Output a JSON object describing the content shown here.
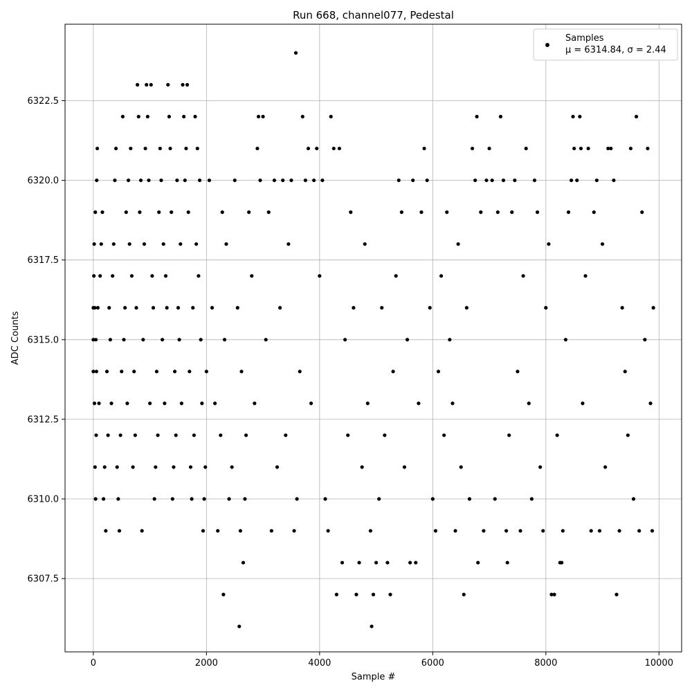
{
  "chart_data": {
    "type": "scatter",
    "title": "Run 668, channel077, Pedestal",
    "xlabel": "Sample #",
    "ylabel": "ADC Counts",
    "xlim": [
      -500,
      10400
    ],
    "ylim": [
      6305.2,
      6324.9
    ],
    "xticks": [
      0,
      2000,
      4000,
      6000,
      8000,
      10000
    ],
    "xtick_labels": [
      "0",
      "2000",
      "4000",
      "6000",
      "8000",
      "10000"
    ],
    "yticks": [
      6307.5,
      6310.0,
      6312.5,
      6315.0,
      6317.5,
      6320.0,
      6322.5
    ],
    "ytick_labels": [
      "6307.5",
      "6310.0",
      "6312.5",
      "6315.0",
      "6317.5",
      "6320.0",
      "6322.5"
    ],
    "grid": true,
    "legend": {
      "position": "top-right",
      "label_line1": "Samples",
      "label_line2": "μ = 6314.84, σ = 2.44"
    },
    "series": [
      {
        "name": "Samples",
        "color": "#000000",
        "points": [
          [
            0,
            6316
          ],
          [
            0,
            6314
          ],
          [
            0,
            6315
          ],
          [
            10,
            6317
          ],
          [
            15,
            6318
          ],
          [
            20,
            6313
          ],
          [
            25,
            6316
          ],
          [
            30,
            6311
          ],
          [
            35,
            6319
          ],
          [
            40,
            6310
          ],
          [
            45,
            6315
          ],
          [
            50,
            6312
          ],
          [
            55,
            6314
          ],
          [
            60,
            6320
          ],
          [
            70,
            6321
          ],
          [
            80,
            6316
          ],
          [
            100,
            6313
          ],
          [
            120,
            6317
          ],
          [
            140,
            6318
          ],
          [
            160,
            6319
          ],
          [
            180,
            6310
          ],
          [
            200,
            6311
          ],
          [
            220,
            6309
          ],
          [
            240,
            6314
          ],
          [
            260,
            6312
          ],
          [
            280,
            6316
          ],
          [
            300,
            6315
          ],
          [
            320,
            6313
          ],
          [
            340,
            6317
          ],
          [
            360,
            6318
          ],
          [
            380,
            6320
          ],
          [
            400,
            6321
          ],
          [
            420,
            6311
          ],
          [
            440,
            6310
          ],
          [
            460,
            6309
          ],
          [
            480,
            6312
          ],
          [
            500,
            6314
          ],
          [
            520,
            6322
          ],
          [
            540,
            6315
          ],
          [
            560,
            6316
          ],
          [
            580,
            6319
          ],
          [
            600,
            6313
          ],
          [
            620,
            6320
          ],
          [
            640,
            6318
          ],
          [
            660,
            6321
          ],
          [
            680,
            6317
          ],
          [
            700,
            6311
          ],
          [
            720,
            6314
          ],
          [
            740,
            6312
          ],
          [
            760,
            6316
          ],
          [
            780,
            6323
          ],
          [
            800,
            6322
          ],
          [
            820,
            6319
          ],
          [
            840,
            6320
          ],
          [
            860,
            6309
          ],
          [
            880,
            6315
          ],
          [
            900,
            6318
          ],
          [
            920,
            6321
          ],
          [
            940,
            6323
          ],
          [
            960,
            6322
          ],
          [
            980,
            6320
          ],
          [
            1000,
            6313
          ],
          [
            1020,
            6323
          ],
          [
            1040,
            6317
          ],
          [
            1060,
            6316
          ],
          [
            1080,
            6310
          ],
          [
            1100,
            6311
          ],
          [
            1120,
            6314
          ],
          [
            1140,
            6312
          ],
          [
            1160,
            6319
          ],
          [
            1180,
            6321
          ],
          [
            1200,
            6320
          ],
          [
            1220,
            6315
          ],
          [
            1240,
            6318
          ],
          [
            1260,
            6313
          ],
          [
            1280,
            6317
          ],
          [
            1300,
            6316
          ],
          [
            1320,
            6323
          ],
          [
            1340,
            6322
          ],
          [
            1360,
            6321
          ],
          [
            1380,
            6319
          ],
          [
            1400,
            6310
          ],
          [
            1420,
            6311
          ],
          [
            1440,
            6314
          ],
          [
            1460,
            6312
          ],
          [
            1480,
            6320
          ],
          [
            1500,
            6316
          ],
          [
            1520,
            6315
          ],
          [
            1540,
            6318
          ],
          [
            1560,
            6313
          ],
          [
            1580,
            6323
          ],
          [
            1600,
            6322
          ],
          [
            1620,
            6320
          ],
          [
            1640,
            6321
          ],
          [
            1660,
            6323
          ],
          [
            1680,
            6319
          ],
          [
            1700,
            6314
          ],
          [
            1720,
            6311
          ],
          [
            1740,
            6310
          ],
          [
            1760,
            6316
          ],
          [
            1780,
            6312
          ],
          [
            1800,
            6322
          ],
          [
            1820,
            6318
          ],
          [
            1840,
            6321
          ],
          [
            1860,
            6317
          ],
          [
            1880,
            6320
          ],
          [
            1900,
            6315
          ],
          [
            1920,
            6313
          ],
          [
            1940,
            6309
          ],
          [
            1960,
            6310
          ],
          [
            1980,
            6311
          ],
          [
            2000,
            6314
          ],
          [
            2050,
            6320
          ],
          [
            2100,
            6316
          ],
          [
            2150,
            6313
          ],
          [
            2200,
            6309
          ],
          [
            2250,
            6312
          ],
          [
            2280,
            6319
          ],
          [
            2300,
            6307
          ],
          [
            2320,
            6315
          ],
          [
            2350,
            6318
          ],
          [
            2400,
            6310
          ],
          [
            2450,
            6311
          ],
          [
            2500,
            6320
          ],
          [
            2550,
            6316
          ],
          [
            2580,
            6306
          ],
          [
            2600,
            6309
          ],
          [
            2620,
            6314
          ],
          [
            2650,
            6308
          ],
          [
            2680,
            6310
          ],
          [
            2700,
            6312
          ],
          [
            2750,
            6319
          ],
          [
            2800,
            6317
          ],
          [
            2850,
            6313
          ],
          [
            2900,
            6321
          ],
          [
            2920,
            6322
          ],
          [
            2950,
            6320
          ],
          [
            3000,
            6322
          ],
          [
            3050,
            6315
          ],
          [
            3100,
            6319
          ],
          [
            3150,
            6309
          ],
          [
            3200,
            6320
          ],
          [
            3250,
            6311
          ],
          [
            3300,
            6316
          ],
          [
            3350,
            6320
          ],
          [
            3400,
            6312
          ],
          [
            3450,
            6318
          ],
          [
            3500,
            6320
          ],
          [
            3550,
            6309
          ],
          [
            3580,
            6324
          ],
          [
            3600,
            6310
          ],
          [
            3650,
            6314
          ],
          [
            3700,
            6322
          ],
          [
            3750,
            6320
          ],
          [
            3800,
            6321
          ],
          [
            3850,
            6313
          ],
          [
            3900,
            6320
          ],
          [
            3950,
            6321
          ],
          [
            4000,
            6317
          ],
          [
            4050,
            6320
          ],
          [
            4100,
            6310
          ],
          [
            4150,
            6309
          ],
          [
            4200,
            6322
          ],
          [
            4250,
            6321
          ],
          [
            4300,
            6307
          ],
          [
            4350,
            6321
          ],
          [
            4400,
            6308
          ],
          [
            4450,
            6315
          ],
          [
            4500,
            6312
          ],
          [
            4550,
            6319
          ],
          [
            4600,
            6316
          ],
          [
            4650,
            6307
          ],
          [
            4700,
            6308
          ],
          [
            4750,
            6311
          ],
          [
            4800,
            6318
          ],
          [
            4850,
            6313
          ],
          [
            4900,
            6309
          ],
          [
            4920,
            6306
          ],
          [
            4950,
            6307
          ],
          [
            5000,
            6308
          ],
          [
            5050,
            6310
          ],
          [
            5100,
            6316
          ],
          [
            5150,
            6312
          ],
          [
            5200,
            6308
          ],
          [
            5250,
            6307
          ],
          [
            5300,
            6314
          ],
          [
            5350,
            6317
          ],
          [
            5400,
            6320
          ],
          [
            5450,
            6319
          ],
          [
            5500,
            6311
          ],
          [
            5550,
            6315
          ],
          [
            5600,
            6308
          ],
          [
            5650,
            6320
          ],
          [
            5700,
            6308
          ],
          [
            5750,
            6313
          ],
          [
            5800,
            6319
          ],
          [
            5850,
            6321
          ],
          [
            5900,
            6320
          ],
          [
            5950,
            6316
          ],
          [
            6000,
            6310
          ],
          [
            6050,
            6309
          ],
          [
            6100,
            6314
          ],
          [
            6150,
            6317
          ],
          [
            6200,
            6312
          ],
          [
            6250,
            6319
          ],
          [
            6300,
            6315
          ],
          [
            6350,
            6313
          ],
          [
            6400,
            6309
          ],
          [
            6450,
            6318
          ],
          [
            6500,
            6311
          ],
          [
            6550,
            6307
          ],
          [
            6600,
            6316
          ],
          [
            6650,
            6310
          ],
          [
            6700,
            6321
          ],
          [
            6750,
            6320
          ],
          [
            6780,
            6322
          ],
          [
            6800,
            6308
          ],
          [
            6850,
            6319
          ],
          [
            6900,
            6309
          ],
          [
            6950,
            6320
          ],
          [
            7000,
            6321
          ],
          [
            7050,
            6320
          ],
          [
            7100,
            6310
          ],
          [
            7150,
            6319
          ],
          [
            7200,
            6322
          ],
          [
            7250,
            6320
          ],
          [
            7300,
            6309
          ],
          [
            7320,
            6308
          ],
          [
            7350,
            6312
          ],
          [
            7400,
            6319
          ],
          [
            7450,
            6320
          ],
          [
            7500,
            6314
          ],
          [
            7550,
            6309
          ],
          [
            7600,
            6317
          ],
          [
            7650,
            6321
          ],
          [
            7700,
            6313
          ],
          [
            7750,
            6310
          ],
          [
            7800,
            6320
          ],
          [
            7850,
            6319
          ],
          [
            7900,
            6311
          ],
          [
            7950,
            6309
          ],
          [
            8000,
            6316
          ],
          [
            8050,
            6318
          ],
          [
            8100,
            6307
          ],
          [
            8150,
            6307
          ],
          [
            8200,
            6312
          ],
          [
            8250,
            6308
          ],
          [
            8280,
            6308
          ],
          [
            8300,
            6309
          ],
          [
            8350,
            6315
          ],
          [
            8400,
            6319
          ],
          [
            8450,
            6320
          ],
          [
            8480,
            6322
          ],
          [
            8500,
            6321
          ],
          [
            8550,
            6320
          ],
          [
            8600,
            6322
          ],
          [
            8620,
            6321
          ],
          [
            8650,
            6313
          ],
          [
            8700,
            6317
          ],
          [
            8750,
            6321
          ],
          [
            8800,
            6309
          ],
          [
            8850,
            6319
          ],
          [
            8900,
            6320
          ],
          [
            8950,
            6309
          ],
          [
            9000,
            6318
          ],
          [
            9050,
            6311
          ],
          [
            9100,
            6321
          ],
          [
            9150,
            6321
          ],
          [
            9200,
            6320
          ],
          [
            9250,
            6307
          ],
          [
            9300,
            6309
          ],
          [
            9350,
            6316
          ],
          [
            9400,
            6314
          ],
          [
            9450,
            6312
          ],
          [
            9500,
            6321
          ],
          [
            9550,
            6310
          ],
          [
            9600,
            6322
          ],
          [
            9650,
            6309
          ],
          [
            9700,
            6319
          ],
          [
            9750,
            6315
          ],
          [
            9800,
            6321
          ],
          [
            9850,
            6313
          ],
          [
            9880,
            6309
          ],
          [
            9900,
            6316
          ]
        ]
      }
    ]
  }
}
